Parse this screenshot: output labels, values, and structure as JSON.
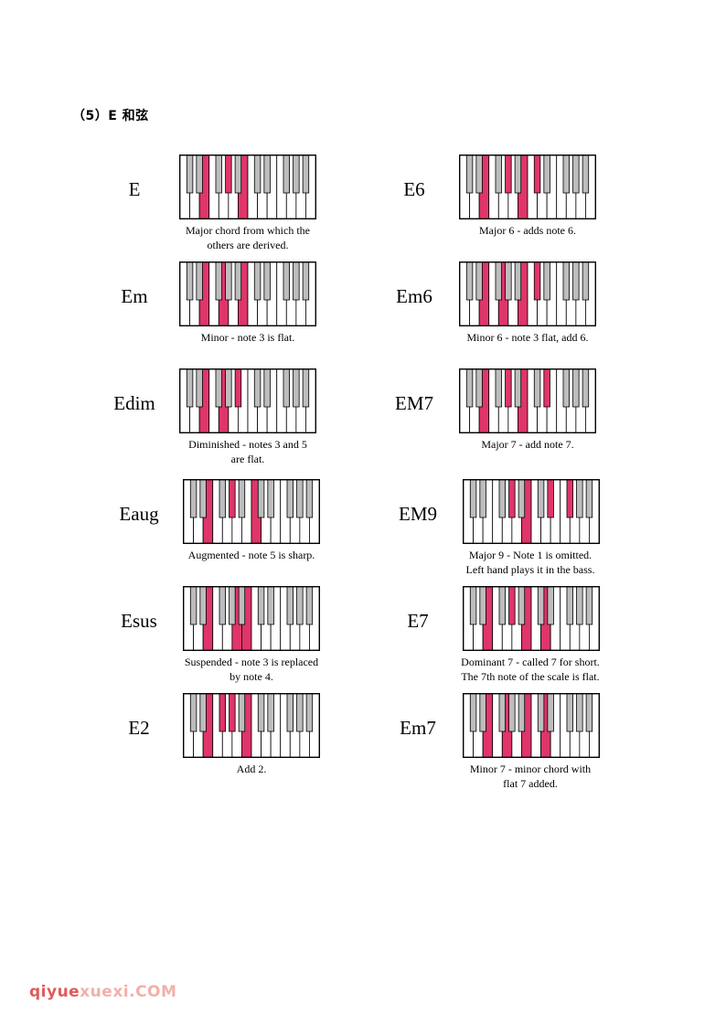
{
  "heading": "（5）E 和弦",
  "accent_color": "#e0356a",
  "black_key_color": "#bdbdbd",
  "chords": [
    {
      "name": "E",
      "highlight": [
        4,
        8,
        11
      ],
      "desc": [
        "Major chord from which the",
        "others are derived."
      ]
    },
    {
      "name": "E6",
      "highlight": [
        4,
        8,
        11,
        13
      ],
      "desc": [
        "Major 6 - adds note 6."
      ]
    },
    {
      "name": "Em",
      "highlight": [
        4,
        7,
        11
      ],
      "desc": [
        "Minor - note 3 is flat."
      ]
    },
    {
      "name": "Em6",
      "highlight": [
        4,
        7,
        11,
        13
      ],
      "desc": [
        "Minor 6 - note 3 flat, add 6."
      ]
    },
    {
      "name": "Edim",
      "highlight": [
        4,
        7,
        10
      ],
      "desc": [
        "Diminished - notes 3 and 5",
        "are flat."
      ]
    },
    {
      "name": "EM7",
      "highlight": [
        4,
        8,
        11,
        15
      ],
      "desc": [
        "Major 7 - add note 7."
      ]
    },
    {
      "name": "Eaug",
      "highlight": [
        4,
        8,
        12
      ],
      "desc": [
        "Augmented - note 5 is sharp."
      ]
    },
    {
      "name": "EM9",
      "highlight": [
        8,
        11,
        15,
        18
      ],
      "desc": [
        "Major 9 - Note 1 is omitted.",
        "Left hand plays it in the bass."
      ]
    },
    {
      "name": "Esus",
      "highlight": [
        4,
        9,
        11
      ],
      "desc": [
        "Suspended - note 3 is replaced",
        "by note 4."
      ]
    },
    {
      "name": "E7",
      "highlight": [
        4,
        8,
        11,
        14
      ],
      "desc": [
        "Dominant 7 - called 7 for short.",
        "The 7th note of the scale is flat."
      ]
    },
    {
      "name": "E2",
      "highlight": [
        4,
        6,
        8,
        11
      ],
      "desc": [
        "Add 2."
      ]
    },
    {
      "name": "Em7",
      "highlight": [
        4,
        7,
        11,
        14
      ],
      "desc": [
        "Minor 7 - minor chord with",
        "flat 7 added."
      ]
    }
  ],
  "watermark": {
    "part1": "qiyue",
    "part2": "xuexi.COM"
  }
}
